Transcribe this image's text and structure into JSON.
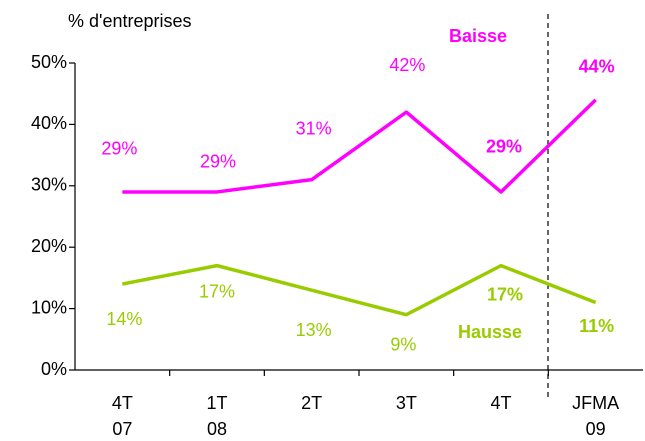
{
  "chart_data": {
    "type": "line",
    "y_axis_label": "% d'entreprises",
    "categories": [
      "4T\n07",
      "1T\n08",
      "2T",
      "3T",
      "4T",
      "JFMA\n09"
    ],
    "series": [
      {
        "name": "Baisse",
        "color": "#ff00ff",
        "values": [
          29,
          29,
          31,
          42,
          29,
          44
        ],
        "value_labels": [
          "29%",
          "29%",
          "31%",
          "42%",
          "29%",
          "44%"
        ]
      },
      {
        "name": "Hausse",
        "color": "#99cc00",
        "values": [
          14,
          17,
          13,
          9,
          17,
          11
        ],
        "value_labels": [
          "14%",
          "17%",
          "13%",
          "9%",
          "17%",
          "11%"
        ]
      }
    ],
    "ylim": [
      0,
      50
    ],
    "yticks": [
      {
        "value": 0,
        "label": "0%"
      },
      {
        "value": 10,
        "label": "10%"
      },
      {
        "value": 20,
        "label": "20%"
      },
      {
        "value": 30,
        "label": "30%"
      },
      {
        "value": 40,
        "label": "40%"
      },
      {
        "value": 50,
        "label": "50%"
      }
    ]
  }
}
